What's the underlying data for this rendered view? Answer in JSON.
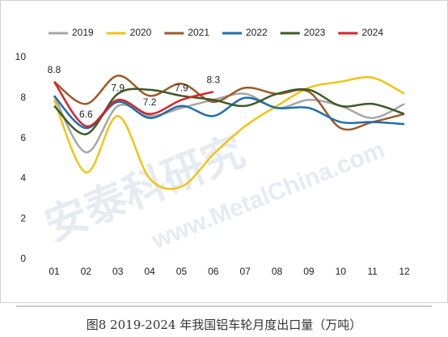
{
  "chart_data": {
    "type": "line",
    "caption": "图8 2019-2024 年我国铝车轮月度出口量（万吨）",
    "watermark": [
      "安泰科研究",
      "www.MetalChina.com"
    ],
    "categories": [
      "01",
      "02",
      "03",
      "04",
      "05",
      "06",
      "07",
      "08",
      "09",
      "10",
      "11",
      "12"
    ],
    "ylim": [
      0,
      10
    ],
    "yticks": [
      0,
      2,
      4,
      6,
      8,
      10
    ],
    "grid": false,
    "legend": "top",
    "series": [
      {
        "name": "2019",
        "color": "#a6a6a6",
        "values": [
          8.1,
          5.3,
          7.6,
          7.1,
          7.5,
          7.9,
          8.2,
          7.5,
          7.9,
          7.6,
          7.0,
          7.7
        ]
      },
      {
        "name": "2020",
        "color": "#f2c314",
        "values": [
          7.9,
          4.3,
          7.1,
          4.0,
          3.6,
          5.2,
          6.6,
          7.6,
          8.5,
          8.8,
          9.0,
          8.2
        ]
      },
      {
        "name": "2021",
        "color": "#9c5a2a",
        "values": [
          8.8,
          7.7,
          9.1,
          8.1,
          8.7,
          7.8,
          8.5,
          8.2,
          8.3,
          6.5,
          6.8,
          7.2
        ]
      },
      {
        "name": "2022",
        "color": "#1f6fa8",
        "values": [
          8.1,
          6.5,
          7.8,
          7.0,
          7.6,
          7.1,
          8.0,
          7.5,
          7.5,
          6.8,
          6.8,
          6.7
        ]
      },
      {
        "name": "2023",
        "color": "#3d5a26",
        "values": [
          7.6,
          6.2,
          8.2,
          8.4,
          8.1,
          7.9,
          7.6,
          8.2,
          8.4,
          7.6,
          7.7,
          7.2
        ]
      },
      {
        "name": "2024",
        "color": "#d9232a",
        "values": [
          8.8,
          6.6,
          7.9,
          7.2,
          7.9,
          8.3,
          null,
          null,
          null,
          null,
          null,
          null
        ],
        "show_labels": true
      }
    ]
  }
}
